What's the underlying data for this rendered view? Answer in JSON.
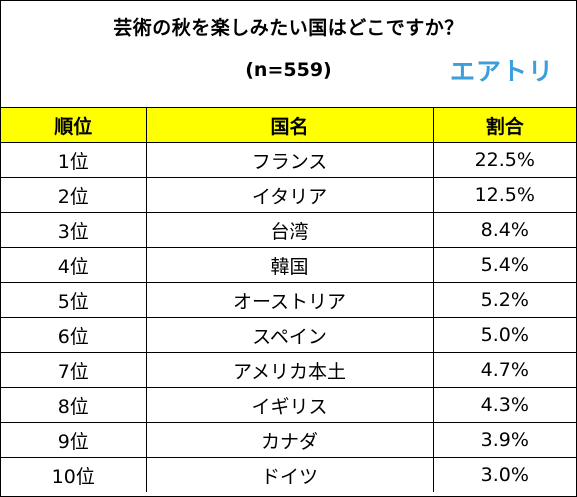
{
  "title": "芸術の秋を楽しみたい国はどこですか？",
  "subtitle": "(n=559)",
  "logo_text": "エアトリ",
  "colors": {
    "header_bg": "#ffff00",
    "logo": "#3a9fdc",
    "border": "#000000"
  },
  "table": {
    "headers": {
      "rank": "順位",
      "country": "国名",
      "ratio": "割合"
    },
    "rows": [
      {
        "rank": "1位",
        "country": "フランス",
        "ratio": "22.5%"
      },
      {
        "rank": "2位",
        "country": "イタリア",
        "ratio": "12.5%"
      },
      {
        "rank": "3位",
        "country": "台湾",
        "ratio": "8.4%"
      },
      {
        "rank": "4位",
        "country": "韓国",
        "ratio": "5.4%"
      },
      {
        "rank": "5位",
        "country": "オーストリア",
        "ratio": "5.2%"
      },
      {
        "rank": "6位",
        "country": "スペイン",
        "ratio": "5.0%"
      },
      {
        "rank": "7位",
        "country": "アメリカ本土",
        "ratio": "4.7%"
      },
      {
        "rank": "8位",
        "country": "イギリス",
        "ratio": "4.3%"
      },
      {
        "rank": "9位",
        "country": "カナダ",
        "ratio": "3.9%"
      },
      {
        "rank": "10位",
        "country": "ドイツ",
        "ratio": "3.0%"
      }
    ]
  }
}
